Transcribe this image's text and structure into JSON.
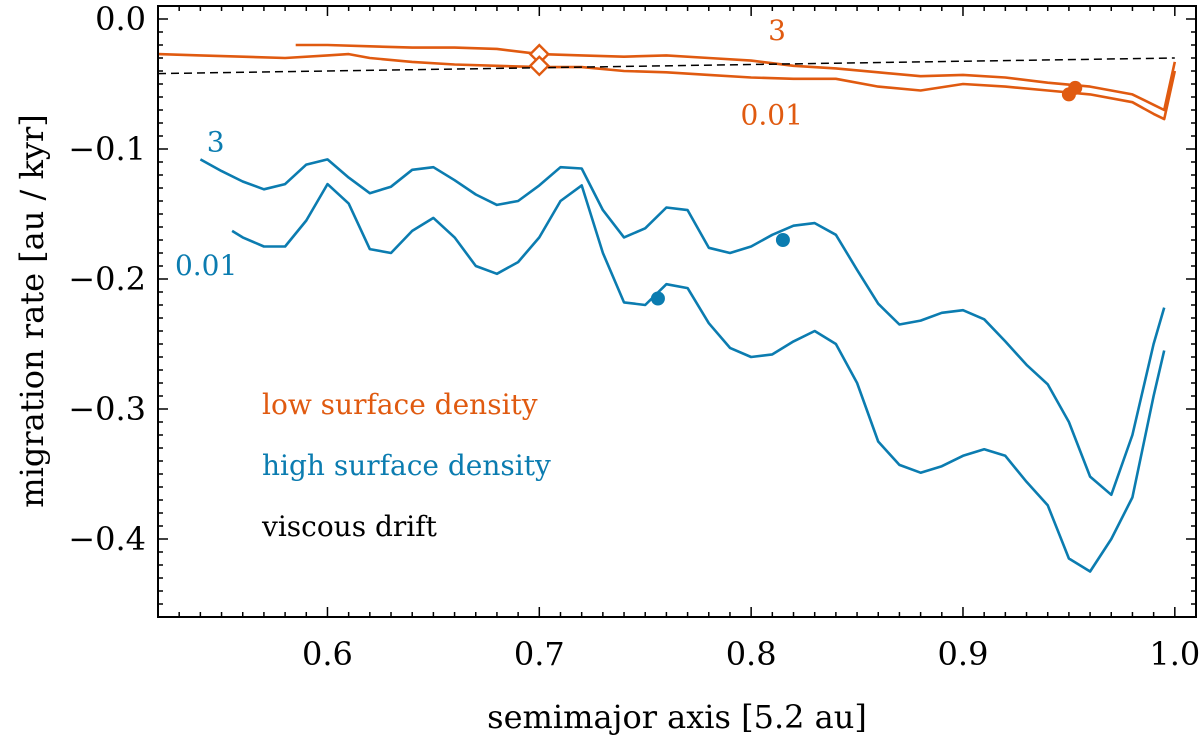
{
  "chart_data": {
    "type": "line",
    "xlabel": "semimajor axis [5.2 au]",
    "ylabel": "migration rate [au / kyr]",
    "xlim": [
      0.52,
      1.01
    ],
    "ylim": [
      -0.46,
      0.01
    ],
    "xticks": [
      0.6,
      0.7,
      0.8,
      0.9,
      1.0
    ],
    "xtick_labels": [
      "0.6",
      "0.7",
      "0.8",
      "0.9",
      "1.0"
    ],
    "yticks": [
      0.0,
      -0.1,
      -0.2,
      -0.3,
      -0.4
    ],
    "ytick_labels": [
      "0.0",
      "−0.1",
      "−0.2",
      "−0.3",
      "−0.4"
    ],
    "colors": {
      "low": "#e05a10",
      "high": "#0b7cb0",
      "viscous": "#000000"
    },
    "series": [
      {
        "name": "low surface density, 3",
        "group": "low",
        "label": "3",
        "x": [
          0.585,
          0.6,
          0.62,
          0.64,
          0.66,
          0.68,
          0.7,
          0.72,
          0.74,
          0.76,
          0.78,
          0.8,
          0.82,
          0.84,
          0.86,
          0.88,
          0.9,
          0.92,
          0.94,
          0.96,
          0.98,
          0.99,
          0.995,
          1.0
        ],
        "y": [
          -0.02,
          -0.02,
          -0.021,
          -0.022,
          -0.022,
          -0.023,
          -0.027,
          -0.028,
          -0.029,
          -0.028,
          -0.03,
          -0.032,
          -0.036,
          -0.038,
          -0.041,
          -0.044,
          -0.043,
          -0.045,
          -0.049,
          -0.052,
          -0.058,
          -0.066,
          -0.07,
          -0.033
        ]
      },
      {
        "name": "low surface density, 0.01",
        "group": "low",
        "label": "0.01",
        "x": [
          0.52,
          0.54,
          0.56,
          0.58,
          0.6,
          0.61,
          0.62,
          0.64,
          0.66,
          0.68,
          0.7,
          0.72,
          0.74,
          0.76,
          0.78,
          0.8,
          0.82,
          0.84,
          0.86,
          0.88,
          0.9,
          0.92,
          0.94,
          0.96,
          0.98,
          0.99,
          0.995,
          1.0
        ],
        "y": [
          -0.027,
          -0.028,
          -0.029,
          -0.03,
          -0.028,
          -0.027,
          -0.03,
          -0.033,
          -0.035,
          -0.036,
          -0.037,
          -0.037,
          -0.04,
          -0.041,
          -0.043,
          -0.045,
          -0.046,
          -0.046,
          -0.052,
          -0.055,
          -0.05,
          -0.052,
          -0.055,
          -0.058,
          -0.064,
          -0.073,
          -0.077,
          -0.04
        ]
      },
      {
        "name": "high surface density, 3",
        "group": "high",
        "label": "3",
        "x": [
          0.54,
          0.55,
          0.56,
          0.57,
          0.58,
          0.59,
          0.6,
          0.61,
          0.62,
          0.63,
          0.64,
          0.65,
          0.66,
          0.67,
          0.68,
          0.69,
          0.7,
          0.71,
          0.72,
          0.73,
          0.74,
          0.75,
          0.76,
          0.77,
          0.78,
          0.79,
          0.8,
          0.81,
          0.82,
          0.83,
          0.84,
          0.85,
          0.86,
          0.87,
          0.88,
          0.89,
          0.9,
          0.91,
          0.92,
          0.93,
          0.94,
          0.95,
          0.96,
          0.97,
          0.98,
          0.99,
          0.995
        ],
        "y": [
          -0.108,
          -0.117,
          -0.125,
          -0.131,
          -0.127,
          -0.112,
          -0.108,
          -0.122,
          -0.134,
          -0.129,
          -0.116,
          -0.114,
          -0.124,
          -0.135,
          -0.143,
          -0.14,
          -0.128,
          -0.114,
          -0.115,
          -0.147,
          -0.168,
          -0.161,
          -0.145,
          -0.147,
          -0.176,
          -0.18,
          -0.175,
          -0.166,
          -0.159,
          -0.157,
          -0.166,
          -0.193,
          -0.219,
          -0.235,
          -0.232,
          -0.226,
          -0.224,
          -0.231,
          -0.248,
          -0.266,
          -0.281,
          -0.31,
          -0.352,
          -0.366,
          -0.32,
          -0.25,
          -0.222
        ]
      },
      {
        "name": "high surface density, 0.01",
        "group": "high",
        "label": "0.01",
        "x": [
          0.555,
          0.56,
          0.57,
          0.58,
          0.59,
          0.6,
          0.61,
          0.62,
          0.63,
          0.64,
          0.65,
          0.66,
          0.67,
          0.68,
          0.69,
          0.7,
          0.71,
          0.72,
          0.73,
          0.74,
          0.75,
          0.76,
          0.77,
          0.78,
          0.79,
          0.8,
          0.81,
          0.82,
          0.83,
          0.84,
          0.85,
          0.86,
          0.87,
          0.88,
          0.89,
          0.9,
          0.91,
          0.92,
          0.93,
          0.94,
          0.95,
          0.96,
          0.97,
          0.98,
          0.99,
          0.995
        ],
        "y": [
          -0.163,
          -0.168,
          -0.175,
          -0.175,
          -0.155,
          -0.127,
          -0.142,
          -0.177,
          -0.18,
          -0.163,
          -0.153,
          -0.168,
          -0.19,
          -0.196,
          -0.187,
          -0.168,
          -0.14,
          -0.128,
          -0.18,
          -0.218,
          -0.22,
          -0.204,
          -0.207,
          -0.234,
          -0.253,
          -0.26,
          -0.258,
          -0.248,
          -0.24,
          -0.25,
          -0.28,
          -0.325,
          -0.343,
          -0.349,
          -0.344,
          -0.336,
          -0.331,
          -0.336,
          -0.356,
          -0.374,
          -0.415,
          -0.425,
          -0.4,
          -0.368,
          -0.29,
          -0.255
        ]
      },
      {
        "name": "viscous drift",
        "group": "viscous",
        "label": "",
        "dashed": true,
        "x": [
          0.52,
          1.0
        ],
        "y": [
          -0.042,
          -0.03
        ]
      }
    ],
    "markers": [
      {
        "series": "low surface density, 3",
        "shape": "diamond-open",
        "x": 0.7,
        "y": -0.027,
        "color": "#e05a10"
      },
      {
        "series": "low surface density, 0.01",
        "shape": "diamond-open",
        "x": 0.7,
        "y": -0.036,
        "color": "#e05a10"
      },
      {
        "series": "low surface density, 3",
        "shape": "circle",
        "x": 0.953,
        "y": -0.053,
        "color": "#e05a10"
      },
      {
        "series": "low surface density, 0.01",
        "shape": "circle",
        "x": 0.95,
        "y": -0.058,
        "color": "#e05a10"
      },
      {
        "series": "high surface density, 3",
        "shape": "circle",
        "x": 0.815,
        "y": -0.17,
        "color": "#0b7cb0"
      },
      {
        "series": "high surface density, 0.01",
        "shape": "circle",
        "x": 0.756,
        "y": -0.215,
        "color": "#0b7cb0"
      }
    ],
    "annotations": [
      {
        "text": "3",
        "x": 0.808,
        "y": -0.016,
        "color": "#e05a10"
      },
      {
        "text": "0.01",
        "x": 0.795,
        "y": -0.081,
        "color": "#e05a10"
      },
      {
        "text": "3",
        "x": 0.543,
        "y": -0.102,
        "color": "#0b7cb0"
      },
      {
        "text": "0.01",
        "x": 0.528,
        "y": -0.197,
        "color": "#0b7cb0"
      }
    ],
    "legend": {
      "placement": "lower-left",
      "entries": [
        {
          "text": "low surface density",
          "color": "#e05a10"
        },
        {
          "text": "high surface density",
          "color": "#0b7cb0"
        },
        {
          "text": "viscous drift",
          "color": "#000000"
        }
      ]
    }
  }
}
